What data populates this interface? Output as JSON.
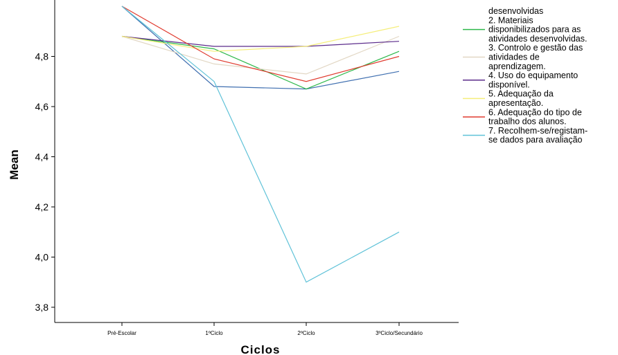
{
  "chart_data": {
    "type": "line",
    "xlabel": "Ciclos",
    "ylabel": "Mean",
    "categories": [
      "Pré-Escolar",
      "1ºCiclo",
      "2ºCiclo",
      "3ºCiclo/Secundário"
    ],
    "ylim": [
      3.75,
      5.0
    ],
    "yticks": [
      "3,8",
      "4,0",
      "4,2",
      "4,4",
      "4,6",
      "4,8"
    ],
    "ytick_values": [
      3.8,
      4.0,
      4.2,
      4.4,
      4.6,
      4.8
    ],
    "grid": false,
    "legend_position": "right",
    "series": [
      {
        "legend_label": "desenvolvidas",
        "legend_lines": [
          "desenvolvidas"
        ],
        "color": "#3f6fb0",
        "values": [
          5.0,
          4.68,
          4.67,
          4.74
        ],
        "legend_line": false
      },
      {
        "legend_label": "2. Materiais disponibilizados para as atividades desenvolvidas.",
        "legend_lines": [
          "2. Materiais",
          "disponibilizados para as",
          "atividades desenvolvidas."
        ],
        "color": "#2db84a",
        "values": [
          4.88,
          4.83,
          4.67,
          4.82
        ],
        "legend_line": true
      },
      {
        "legend_label": "3. Controlo e gestão das atividades de aprendizagem.",
        "legend_lines": [
          "3. Controlo e gestão das",
          "atividades de",
          "aprendizagem."
        ],
        "color": "#e2d7c4",
        "values": [
          4.88,
          4.77,
          4.73,
          4.88
        ],
        "legend_line": true
      },
      {
        "legend_label": "4. Uso do equipamento disponível.",
        "legend_lines": [
          "4. Uso do equipamento",
          "disponível."
        ],
        "color": "#5a2a8a",
        "values": [
          4.88,
          4.84,
          4.84,
          4.86
        ],
        "legend_line": true
      },
      {
        "legend_label": "5. Adequação da apresentação.",
        "legend_lines": [
          "5. Adequação da",
          "apresentação."
        ],
        "color": "#f5ee7a",
        "values": [
          4.88,
          4.82,
          4.84,
          4.92
        ],
        "legend_line": true
      },
      {
        "legend_label": "6. Adequação do tipo de trabalho dos alunos.",
        "legend_lines": [
          "6. Adequação do tipo de",
          "trabalho dos alunos."
        ],
        "color": "#e03a2e",
        "values": [
          5.0,
          4.79,
          4.7,
          4.8
        ],
        "legend_line": true
      },
      {
        "legend_label": "7. Recolhem-se/registam-se dados para avaliação",
        "legend_lines": [
          "7. Recolhem-se/registam-",
          "se dados para avaliação"
        ],
        "color": "#5fc2d8",
        "values": [
          5.0,
          4.7,
          3.9,
          4.1
        ],
        "legend_line": true
      }
    ]
  }
}
